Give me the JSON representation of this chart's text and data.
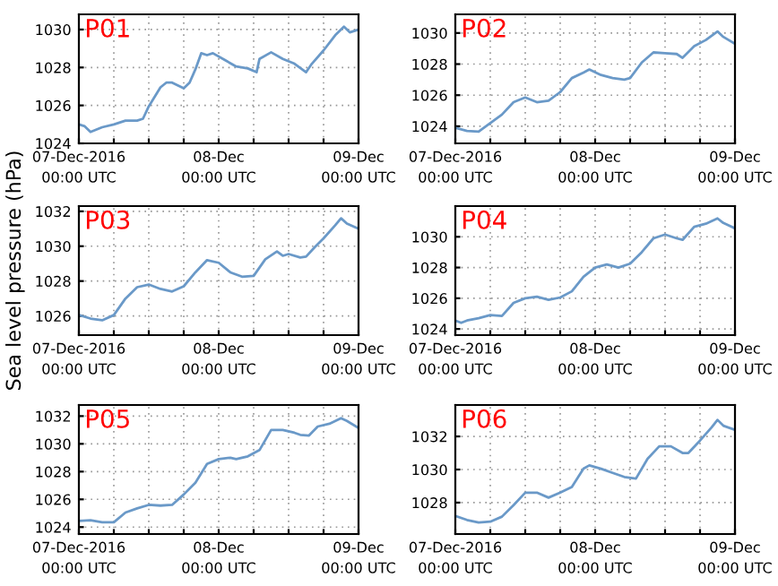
{
  "chart_data": [
    {
      "type": "line",
      "title": "P01",
      "x": [
        "2016-12-07T00:00",
        "2016-12-07T01:00",
        "2016-12-07T02:00",
        "2016-12-07T04:00",
        "2016-12-07T06:00",
        "2016-12-07T08:00",
        "2016-12-07T10:00",
        "2016-12-07T11:00",
        "2016-12-07T12:00",
        "2016-12-07T14:00",
        "2016-12-07T15:00",
        "2016-12-07T16:00",
        "2016-12-07T18:00",
        "2016-12-07T19:00",
        "2016-12-07T20:00",
        "2016-12-07T21:00",
        "2016-12-07T22:00",
        "2016-12-07T23:00",
        "2016-12-08T01:00",
        "2016-12-08T03:00",
        "2016-12-08T05:00",
        "2016-12-08T06:30",
        "2016-12-08T07:00",
        "2016-12-08T09:00",
        "2016-12-08T11:00",
        "2016-12-08T13:00",
        "2016-12-08T15:00",
        "2016-12-08T16:00",
        "2016-12-08T18:00",
        "2016-12-08T20:00",
        "2016-12-08T21:30",
        "2016-12-08T22:30",
        "2016-12-09T00:00"
      ],
      "series": [
        {
          "color": "#6a99c8",
          "values": [
            1025.0,
            1024.9,
            1024.6,
            1024.85,
            1025.0,
            1025.2,
            1025.2,
            1025.3,
            1025.95,
            1026.95,
            1027.2,
            1027.2,
            1026.9,
            1027.2,
            1027.9,
            1028.75,
            1028.65,
            1028.75,
            1028.4,
            1028.05,
            1027.95,
            1027.75,
            1028.45,
            1028.8,
            1028.45,
            1028.2,
            1027.75,
            1028.2,
            1028.9,
            1029.7,
            1030.15,
            1029.85,
            1030.0
          ]
        }
      ],
      "xlim": [
        "2016-12-07T00:00",
        "2016-12-09T00:00"
      ],
      "ylim": [
        1024,
        1030.8
      ],
      "yticks": [
        1024,
        1026,
        1028,
        1030
      ],
      "xticks": [
        {
          "value": "2016-12-07T00:00",
          "label": "07-Dec-2016\n00:00 UTC"
        },
        {
          "value": "2016-12-07T06:00",
          "label": null
        },
        {
          "value": "2016-12-07T12:00",
          "label": null
        },
        {
          "value": "2016-12-07T18:00",
          "label": null
        },
        {
          "value": "2016-12-08T00:00",
          "label": "08-Dec\n00:00 UTC"
        },
        {
          "value": "2016-12-08T06:00",
          "label": null
        },
        {
          "value": "2016-12-08T12:00",
          "label": null
        },
        {
          "value": "2016-12-08T18:00",
          "label": null
        },
        {
          "value": "2016-12-09T00:00",
          "label": "09-Dec\n00:00 UTC"
        }
      ],
      "grid": true
    },
    {
      "type": "line",
      "title": "P02",
      "x": [
        "2016-12-07T00:00",
        "2016-12-07T02:00",
        "2016-12-07T04:00",
        "2016-12-07T06:00",
        "2016-12-07T08:00",
        "2016-12-07T10:00",
        "2016-12-07T12:00",
        "2016-12-07T14:00",
        "2016-12-07T16:00",
        "2016-12-07T18:00",
        "2016-12-07T20:00",
        "2016-12-07T22:00",
        "2016-12-07T23:00",
        "2016-12-08T01:00",
        "2016-12-08T03:00",
        "2016-12-08T05:00",
        "2016-12-08T06:00",
        "2016-12-08T08:00",
        "2016-12-08T10:00",
        "2016-12-08T12:00",
        "2016-12-08T14:00",
        "2016-12-08T15:00",
        "2016-12-08T17:00",
        "2016-12-08T19:00",
        "2016-12-08T21:00",
        "2016-12-08T22:00",
        "2016-12-09T00:00"
      ],
      "series": [
        {
          "color": "#6a99c8",
          "values": [
            1023.9,
            1023.7,
            1023.65,
            1024.2,
            1024.75,
            1025.55,
            1025.85,
            1025.55,
            1025.65,
            1026.2,
            1027.1,
            1027.45,
            1027.65,
            1027.3,
            1027.1,
            1027.0,
            1027.1,
            1028.1,
            1028.75,
            1028.7,
            1028.65,
            1028.4,
            1029.15,
            1029.55,
            1030.1,
            1029.75,
            1029.3
          ]
        }
      ],
      "xlim": [
        "2016-12-07T00:00",
        "2016-12-09T00:00"
      ],
      "ylim": [
        1022.9,
        1031.2
      ],
      "yticks": [
        1024,
        1026,
        1028,
        1030
      ],
      "xticks": [
        {
          "value": "2016-12-07T00:00",
          "label": "07-Dec-2016\n00:00 UTC"
        },
        {
          "value": "2016-12-07T06:00",
          "label": null
        },
        {
          "value": "2016-12-07T12:00",
          "label": null
        },
        {
          "value": "2016-12-07T18:00",
          "label": null
        },
        {
          "value": "2016-12-08T00:00",
          "label": "08-Dec\n00:00 UTC"
        },
        {
          "value": "2016-12-08T06:00",
          "label": null
        },
        {
          "value": "2016-12-08T12:00",
          "label": null
        },
        {
          "value": "2016-12-08T18:00",
          "label": null
        },
        {
          "value": "2016-12-09T00:00",
          "label": "09-Dec\n00:00 UTC"
        }
      ],
      "grid": true
    },
    {
      "type": "line",
      "title": "P03",
      "ylabel": "Sea level pressure (hPa)",
      "x": [
        "2016-12-07T00:00",
        "2016-12-07T02:00",
        "2016-12-07T04:00",
        "2016-12-07T06:00",
        "2016-12-07T08:00",
        "2016-12-07T10:00",
        "2016-12-07T12:00",
        "2016-12-07T14:00",
        "2016-12-07T16:00",
        "2016-12-07T18:00",
        "2016-12-07T20:00",
        "2016-12-07T22:00",
        "2016-12-08T00:00",
        "2016-12-08T02:00",
        "2016-12-08T04:00",
        "2016-12-08T06:00",
        "2016-12-08T08:00",
        "2016-12-08T10:00",
        "2016-12-08T11:00",
        "2016-12-08T12:00",
        "2016-12-08T14:00",
        "2016-12-08T15:00",
        "2016-12-08T16:30",
        "2016-12-08T18:00",
        "2016-12-08T20:00",
        "2016-12-08T21:00",
        "2016-12-08T22:00",
        "2016-12-09T00:00"
      ],
      "series": [
        {
          "color": "#6a99c8",
          "values": [
            1026.05,
            1025.85,
            1025.75,
            1026.05,
            1027.0,
            1027.65,
            1027.8,
            1027.55,
            1027.4,
            1027.7,
            1028.5,
            1029.2,
            1029.05,
            1028.5,
            1028.25,
            1028.3,
            1029.25,
            1029.7,
            1029.45,
            1029.55,
            1029.35,
            1029.4,
            1029.95,
            1030.45,
            1031.2,
            1031.6,
            1031.3,
            1031.0
          ]
        }
      ],
      "xlim": [
        "2016-12-07T00:00",
        "2016-12-09T00:00"
      ],
      "ylim": [
        1024.9,
        1032.3
      ],
      "yticks": [
        1026,
        1028,
        1030,
        1032
      ],
      "xticks": [
        {
          "value": "2016-12-07T00:00",
          "label": "07-Dec-2016\n00:00 UTC"
        },
        {
          "value": "2016-12-07T06:00",
          "label": null
        },
        {
          "value": "2016-12-07T12:00",
          "label": null
        },
        {
          "value": "2016-12-07T18:00",
          "label": null
        },
        {
          "value": "2016-12-08T00:00",
          "label": "08-Dec\n00:00 UTC"
        },
        {
          "value": "2016-12-08T06:00",
          "label": null
        },
        {
          "value": "2016-12-08T12:00",
          "label": null
        },
        {
          "value": "2016-12-08T18:00",
          "label": null
        },
        {
          "value": "2016-12-09T00:00",
          "label": "09-Dec\n00:00 UTC"
        }
      ],
      "grid": true
    },
    {
      "type": "line",
      "title": "P04",
      "x": [
        "2016-12-07T00:00",
        "2016-12-07T01:00",
        "2016-12-07T02:00",
        "2016-12-07T04:00",
        "2016-12-07T06:00",
        "2016-12-07T08:00",
        "2016-12-07T10:00",
        "2016-12-07T12:00",
        "2016-12-07T14:00",
        "2016-12-07T16:00",
        "2016-12-07T18:00",
        "2016-12-07T20:00",
        "2016-12-07T22:00",
        "2016-12-08T00:00",
        "2016-12-08T02:00",
        "2016-12-08T04:00",
        "2016-12-08T06:00",
        "2016-12-08T08:00",
        "2016-12-08T10:00",
        "2016-12-08T12:00",
        "2016-12-08T14:00",
        "2016-12-08T15:00",
        "2016-12-08T17:00",
        "2016-12-08T19:00",
        "2016-12-08T21:00",
        "2016-12-08T22:00",
        "2016-12-09T00:00"
      ],
      "series": [
        {
          "color": "#6a99c8",
          "values": [
            1024.55,
            1024.4,
            1024.55,
            1024.7,
            1024.9,
            1024.85,
            1025.7,
            1026.0,
            1026.1,
            1025.9,
            1026.05,
            1026.45,
            1027.4,
            1028.0,
            1028.2,
            1028.0,
            1028.25,
            1029.0,
            1029.9,
            1030.15,
            1029.9,
            1029.8,
            1030.65,
            1030.85,
            1031.2,
            1030.9,
            1030.55
          ]
        }
      ],
      "xlim": [
        "2016-12-07T00:00",
        "2016-12-09T00:00"
      ],
      "ylim": [
        1023.6,
        1032.0
      ],
      "yticks": [
        1024,
        1026,
        1028,
        1030
      ],
      "xticks": [
        {
          "value": "2016-12-07T00:00",
          "label": "07-Dec-2016\n00:00 UTC"
        },
        {
          "value": "2016-12-07T06:00",
          "label": null
        },
        {
          "value": "2016-12-07T12:00",
          "label": null
        },
        {
          "value": "2016-12-07T18:00",
          "label": null
        },
        {
          "value": "2016-12-08T00:00",
          "label": "08-Dec\n00:00 UTC"
        },
        {
          "value": "2016-12-08T06:00",
          "label": null
        },
        {
          "value": "2016-12-08T12:00",
          "label": null
        },
        {
          "value": "2016-12-08T18:00",
          "label": null
        },
        {
          "value": "2016-12-09T00:00",
          "label": "09-Dec\n00:00 UTC"
        }
      ],
      "grid": true
    },
    {
      "type": "line",
      "title": "P05",
      "x": [
        "2016-12-07T00:00",
        "2016-12-07T02:00",
        "2016-12-07T04:00",
        "2016-12-07T06:00",
        "2016-12-07T08:00",
        "2016-12-07T10:00",
        "2016-12-07T12:00",
        "2016-12-07T14:00",
        "2016-12-07T16:00",
        "2016-12-07T18:00",
        "2016-12-07T20:00",
        "2016-12-07T22:00",
        "2016-12-08T00:00",
        "2016-12-08T02:00",
        "2016-12-08T03:00",
        "2016-12-08T05:00",
        "2016-12-08T07:00",
        "2016-12-08T09:00",
        "2016-12-08T11:00",
        "2016-12-08T13:00",
        "2016-12-08T14:00",
        "2016-12-08T15:30",
        "2016-12-08T17:00",
        "2016-12-08T19:00",
        "2016-12-08T21:00",
        "2016-12-08T22:00",
        "2016-12-09T00:00"
      ],
      "series": [
        {
          "color": "#6a99c8",
          "values": [
            1024.45,
            1024.5,
            1024.35,
            1024.35,
            1025.05,
            1025.35,
            1025.6,
            1025.55,
            1025.6,
            1026.35,
            1027.2,
            1028.55,
            1028.9,
            1029.0,
            1028.9,
            1029.1,
            1029.55,
            1031.0,
            1031.0,
            1030.8,
            1030.65,
            1030.6,
            1031.25,
            1031.45,
            1031.85,
            1031.65,
            1031.15
          ]
        }
      ],
      "xlim": [
        "2016-12-07T00:00",
        "2016-12-09T00:00"
      ],
      "ylim": [
        1023.5,
        1032.8
      ],
      "yticks": [
        1024,
        1026,
        1028,
        1030,
        1032
      ],
      "xticks": [
        {
          "value": "2016-12-07T00:00",
          "label": "07-Dec-2016\n00:00 UTC"
        },
        {
          "value": "2016-12-07T06:00",
          "label": null
        },
        {
          "value": "2016-12-07T12:00",
          "label": null
        },
        {
          "value": "2016-12-07T18:00",
          "label": null
        },
        {
          "value": "2016-12-08T00:00",
          "label": "08-Dec\n00:00 UTC"
        },
        {
          "value": "2016-12-08T06:00",
          "label": null
        },
        {
          "value": "2016-12-08T12:00",
          "label": null
        },
        {
          "value": "2016-12-08T18:00",
          "label": null
        },
        {
          "value": "2016-12-09T00:00",
          "label": "09-Dec\n00:00 UTC"
        }
      ],
      "grid": true
    },
    {
      "type": "line",
      "title": "P06",
      "x": [
        "2016-12-07T00:00",
        "2016-12-07T02:00",
        "2016-12-07T04:00",
        "2016-12-07T06:00",
        "2016-12-07T08:00",
        "2016-12-07T10:00",
        "2016-12-07T12:00",
        "2016-12-07T14:00",
        "2016-12-07T16:00",
        "2016-12-07T18:00",
        "2016-12-07T20:00",
        "2016-12-07T22:00",
        "2016-12-07T23:00",
        "2016-12-08T01:00",
        "2016-12-08T03:00",
        "2016-12-08T05:00",
        "2016-12-08T07:00",
        "2016-12-08T09:00",
        "2016-12-08T11:00",
        "2016-12-08T13:00",
        "2016-12-08T15:00",
        "2016-12-08T16:00",
        "2016-12-08T18:00",
        "2016-12-08T20:00",
        "2016-12-08T21:00",
        "2016-12-08T22:00",
        "2016-12-09T00:00"
      ],
      "series": [
        {
          "color": "#6a99c8",
          "values": [
            1027.2,
            1026.95,
            1026.8,
            1026.85,
            1027.15,
            1027.85,
            1028.6,
            1028.6,
            1028.3,
            1028.6,
            1028.95,
            1030.05,
            1030.25,
            1030.05,
            1029.8,
            1029.55,
            1029.45,
            1030.65,
            1031.4,
            1031.4,
            1031.0,
            1031.0,
            1031.75,
            1032.55,
            1033.0,
            1032.65,
            1032.4
          ]
        }
      ],
      "xlim": [
        "2016-12-07T00:00",
        "2016-12-09T00:00"
      ],
      "ylim": [
        1026.1,
        1033.9
      ],
      "yticks": [
        1028,
        1030,
        1032
      ],
      "xticks": [
        {
          "value": "2016-12-07T00:00",
          "label": "07-Dec-2016\n00:00 UTC"
        },
        {
          "value": "2016-12-07T06:00",
          "label": null
        },
        {
          "value": "2016-12-07T12:00",
          "label": null
        },
        {
          "value": "2016-12-07T18:00",
          "label": null
        },
        {
          "value": "2016-12-08T00:00",
          "label": "08-Dec\n00:00 UTC"
        },
        {
          "value": "2016-12-08T06:00",
          "label": null
        },
        {
          "value": "2016-12-08T12:00",
          "label": null
        },
        {
          "value": "2016-12-08T18:00",
          "label": null
        },
        {
          "value": "2016-12-09T00:00",
          "label": "09-Dec\n00:00 UTC"
        }
      ],
      "grid": true
    }
  ]
}
